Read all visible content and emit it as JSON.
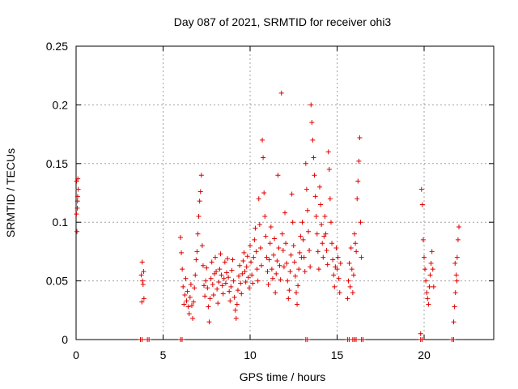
{
  "chart_data": {
    "type": "scatter",
    "title": "Day 087 of 2021, SRMTID for receiver ohi3",
    "xlabel": "GPS time / hours",
    "ylabel": "SRMTID / TECUs",
    "xlim": [
      0,
      24
    ],
    "ylim": [
      0,
      0.25
    ],
    "xticks": [
      0,
      5,
      10,
      15,
      20
    ],
    "yticks": [
      0,
      0.05,
      0.1,
      0.15,
      0.2,
      0.25
    ],
    "xtick_labels": [
      "0",
      "5",
      "10",
      "15",
      "20"
    ],
    "ytick_labels": [
      "0",
      "0.05",
      "0.1",
      "0.15",
      "0.2",
      "0.25"
    ],
    "grid": true,
    "marker": "+",
    "color": "#e00000",
    "series": [
      {
        "name": "SRMTID",
        "points": [
          [
            0.02,
            0.107
          ],
          [
            0.05,
            0.092
          ],
          [
            0.08,
            0.118
          ],
          [
            0.1,
            0.137
          ],
          [
            0.12,
            0.128
          ],
          [
            0.03,
            0.135
          ],
          [
            0.07,
            0.112
          ],
          [
            0.09,
            0.122
          ],
          [
            3.75,
            0.055
          ],
          [
            3.8,
            0.066
          ],
          [
            3.85,
            0.047
          ],
          [
            3.9,
            0.035
          ],
          [
            3.78,
            0.032
          ],
          [
            3.82,
            0.05
          ],
          [
            3.88,
            0.058
          ],
          [
            6.0,
            0.087
          ],
          [
            6.05,
            0.074
          ],
          [
            6.1,
            0.06
          ],
          [
            6.15,
            0.045
          ],
          [
            6.2,
            0.03
          ],
          [
            6.25,
            0.038
          ],
          [
            6.3,
            0.052
          ],
          [
            6.35,
            0.033
          ],
          [
            6.4,
            0.041
          ],
          [
            6.45,
            0.028
          ],
          [
            6.5,
            0.022
          ],
          [
            6.55,
            0.036
          ],
          [
            6.6,
            0.047
          ],
          [
            6.65,
            0.029
          ],
          [
            6.7,
            0.018
          ],
          [
            6.75,
            0.032
          ],
          [
            6.8,
            0.044
          ],
          [
            6.85,
            0.055
          ],
          [
            6.9,
            0.068
          ],
          [
            6.95,
            0.075
          ],
          [
            7.0,
            0.09
          ],
          [
            7.05,
            0.105
          ],
          [
            7.1,
            0.118
          ],
          [
            7.15,
            0.126
          ],
          [
            7.2,
            0.14
          ],
          [
            7.25,
            0.08
          ],
          [
            7.3,
            0.063
          ],
          [
            7.35,
            0.046
          ],
          [
            7.4,
            0.037
          ],
          [
            7.45,
            0.05
          ],
          [
            7.5,
            0.061
          ],
          [
            7.55,
            0.044
          ],
          [
            7.6,
            0.028
          ],
          [
            7.65,
            0.015
          ],
          [
            7.7,
            0.035
          ],
          [
            7.75,
            0.052
          ],
          [
            7.8,
            0.066
          ],
          [
            7.85,
            0.047
          ],
          [
            7.9,
            0.038
          ],
          [
            7.95,
            0.056
          ],
          [
            8.0,
            0.07
          ],
          [
            8.05,
            0.058
          ],
          [
            8.1,
            0.043
          ],
          [
            8.15,
            0.031
          ],
          [
            8.2,
            0.049
          ],
          [
            8.25,
            0.06
          ],
          [
            8.3,
            0.073
          ],
          [
            8.35,
            0.055
          ],
          [
            8.4,
            0.046
          ],
          [
            8.45,
            0.039
          ],
          [
            8.5,
            0.052
          ],
          [
            8.55,
            0.066
          ],
          [
            8.6,
            0.048
          ],
          [
            8.65,
            0.057
          ],
          [
            8.7,
            0.069
          ],
          [
            8.75,
            0.053
          ],
          [
            8.8,
            0.041
          ],
          [
            8.85,
            0.033
          ],
          [
            8.9,
            0.045
          ],
          [
            8.95,
            0.059
          ],
          [
            9.0,
            0.068
          ],
          [
            9.05,
            0.05
          ],
          [
            9.1,
            0.036
          ],
          [
            9.15,
            0.025
          ],
          [
            9.2,
            0.018
          ],
          [
            9.25,
            0.03
          ],
          [
            9.3,
            0.042
          ],
          [
            9.35,
            0.054
          ],
          [
            9.4,
            0.063
          ],
          [
            9.45,
            0.048
          ],
          [
            9.5,
            0.039
          ],
          [
            9.55,
            0.056
          ],
          [
            9.6,
            0.067
          ],
          [
            9.65,
            0.074
          ],
          [
            9.7,
            0.058
          ],
          [
            9.75,
            0.049
          ],
          [
            9.8,
            0.062
          ],
          [
            9.85,
            0.071
          ],
          [
            9.9,
            0.053
          ],
          [
            9.95,
            0.044
          ],
          [
            10.0,
            0.08
          ],
          [
            10.05,
            0.066
          ],
          [
            10.1,
            0.055
          ],
          [
            10.15,
            0.048
          ],
          [
            10.2,
            0.07
          ],
          [
            10.25,
            0.085
          ],
          [
            10.3,
            0.095
          ],
          [
            10.35,
            0.075
          ],
          [
            10.4,
            0.06
          ],
          [
            10.45,
            0.05
          ],
          [
            10.5,
            0.12
          ],
          [
            10.55,
            0.098
          ],
          [
            10.6,
            0.078
          ],
          [
            10.65,
            0.063
          ],
          [
            10.7,
            0.17
          ],
          [
            10.75,
            0.155
          ],
          [
            10.8,
            0.125
          ],
          [
            10.85,
            0.105
          ],
          [
            10.9,
            0.088
          ],
          [
            10.95,
            0.07
          ],
          [
            11.0,
            0.058
          ],
          [
            11.05,
            0.047
          ],
          [
            11.1,
            0.068
          ],
          [
            11.15,
            0.082
          ],
          [
            11.2,
            0.096
          ],
          [
            11.25,
            0.06
          ],
          [
            11.3,
            0.052
          ],
          [
            11.35,
            0.072
          ],
          [
            11.4,
            0.086
          ],
          [
            11.45,
            0.04
          ],
          [
            11.5,
            0.056
          ],
          [
            11.55,
            0.067
          ],
          [
            11.6,
            0.14
          ],
          [
            11.65,
            0.078
          ],
          [
            11.7,
            0.063
          ],
          [
            11.75,
            0.051
          ],
          [
            11.8,
            0.21
          ],
          [
            11.85,
            0.09
          ],
          [
            11.9,
            0.076
          ],
          [
            11.95,
            0.062
          ],
          [
            12.0,
            0.108
          ],
          [
            12.05,
            0.082
          ],
          [
            12.1,
            0.065
          ],
          [
            12.15,
            0.05
          ],
          [
            12.2,
            0.035
          ],
          [
            12.25,
            0.042
          ],
          [
            12.3,
            0.058
          ],
          [
            12.35,
            0.072
          ],
          [
            12.4,
            0.124
          ],
          [
            12.45,
            0.1
          ],
          [
            12.5,
            0.08
          ],
          [
            12.55,
            0.066
          ],
          [
            12.6,
            0.054
          ],
          [
            12.65,
            0.04
          ],
          [
            12.7,
            0.03
          ],
          [
            12.75,
            0.046
          ],
          [
            12.8,
            0.06
          ],
          [
            12.85,
            0.074
          ],
          [
            12.9,
            0.088
          ],
          [
            12.95,
            0.07
          ],
          [
            13.0,
            0.1
          ],
          [
            13.05,
            0.085
          ],
          [
            13.1,
            0.07
          ],
          [
            13.15,
            0.058
          ],
          [
            13.2,
            0.15
          ],
          [
            13.25,
            0.128
          ],
          [
            13.3,
            0.11
          ],
          [
            13.35,
            0.092
          ],
          [
            13.4,
            0.076
          ],
          [
            13.45,
            0.062
          ],
          [
            13.5,
            0.2
          ],
          [
            13.55,
            0.185
          ],
          [
            13.6,
            0.17
          ],
          [
            13.65,
            0.155
          ],
          [
            13.7,
            0.14
          ],
          [
            13.75,
            0.122
          ],
          [
            13.8,
            0.105
          ],
          [
            13.85,
            0.09
          ],
          [
            13.9,
            0.075
          ],
          [
            13.95,
            0.06
          ],
          [
            14.0,
            0.13
          ],
          [
            14.05,
            0.115
          ],
          [
            14.1,
            0.098
          ],
          [
            14.15,
            0.082
          ],
          [
            14.2,
            0.07
          ],
          [
            14.25,
            0.088
          ],
          [
            14.3,
            0.105
          ],
          [
            14.35,
            0.09
          ],
          [
            14.4,
            0.076
          ],
          [
            14.45,
            0.064
          ],
          [
            14.5,
            0.16
          ],
          [
            14.55,
            0.145
          ],
          [
            14.6,
            0.12
          ],
          [
            14.65,
            0.1
          ],
          [
            14.7,
            0.082
          ],
          [
            14.75,
            0.068
          ],
          [
            14.8,
            0.055
          ],
          [
            14.85,
            0.045
          ],
          [
            14.9,
            0.062
          ],
          [
            14.95,
            0.078
          ],
          [
            15.0,
            0.06
          ],
          [
            15.05,
            0.07
          ],
          [
            15.1,
            0.052
          ],
          [
            15.15,
            0.04
          ],
          [
            15.2,
            0.065
          ],
          [
            15.6,
            0.035
          ],
          [
            15.65,
            0.05
          ],
          [
            15.7,
            0.065
          ],
          [
            15.75,
            0.045
          ],
          [
            15.8,
            0.078
          ],
          [
            15.85,
            0.06
          ],
          [
            15.9,
            0.04
          ],
          [
            15.95,
            0.055
          ],
          [
            16.0,
            0.09
          ],
          [
            16.05,
            0.082
          ],
          [
            16.1,
            0.075
          ],
          [
            16.15,
            0.12
          ],
          [
            16.2,
            0.135
          ],
          [
            16.25,
            0.152
          ],
          [
            16.3,
            0.172
          ],
          [
            16.35,
            0.1
          ],
          [
            16.4,
            0.07
          ],
          [
            19.8,
            0.005
          ],
          [
            19.85,
            0.128
          ],
          [
            19.9,
            0.115
          ],
          [
            19.95,
            0.085
          ],
          [
            20.0,
            0.07
          ],
          [
            20.05,
            0.06
          ],
          [
            20.1,
            0.05
          ],
          [
            20.15,
            0.04
          ],
          [
            20.2,
            0.035
          ],
          [
            20.25,
            0.03
          ],
          [
            20.3,
            0.045
          ],
          [
            20.35,
            0.055
          ],
          [
            20.4,
            0.065
          ],
          [
            20.45,
            0.075
          ],
          [
            20.5,
            0.06
          ],
          [
            20.55,
            0.045
          ],
          [
            21.7,
            0.015
          ],
          [
            21.75,
            0.028
          ],
          [
            21.8,
            0.04
          ],
          [
            21.85,
            0.055
          ],
          [
            21.9,
            0.07
          ],
          [
            21.95,
            0.085
          ],
          [
            22.0,
            0.096
          ],
          [
            21.78,
            0.065
          ],
          [
            21.88,
            0.05
          ]
        ]
      }
    ],
    "zero_points": [
      3.7,
      4.1,
      6.0,
      13.2,
      15.6,
      15.9,
      16.0,
      16.4,
      19.8,
      21.6
    ]
  }
}
